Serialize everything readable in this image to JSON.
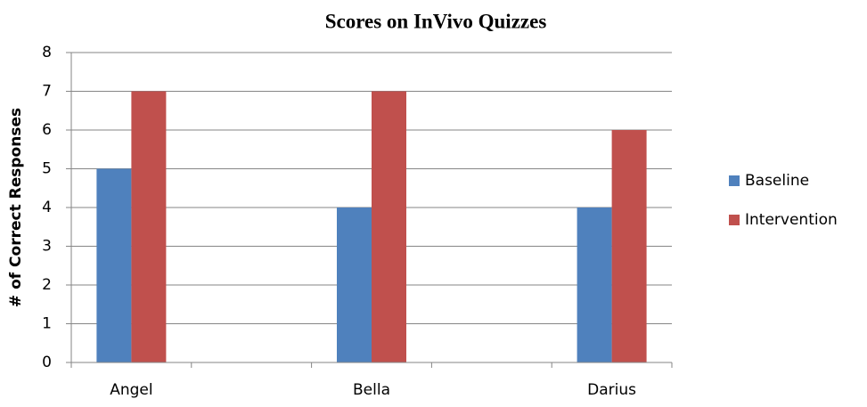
{
  "chart_data": {
    "type": "bar",
    "title": "Scores on InVivo Quizzes",
    "y_label": "# of Correct Responses",
    "categories": [
      "Angel",
      null,
      "Bella",
      null,
      "Darius"
    ],
    "series": [
      {
        "name": "Baseline",
        "color": "#4f81bd",
        "values": [
          5,
          null,
          4,
          null,
          4
        ]
      },
      {
        "name": "Intervention",
        "color": "#c0504d",
        "values": [
          7,
          null,
          7,
          null,
          6
        ]
      }
    ],
    "ylim": [
      0,
      8
    ],
    "yticks": [
      0,
      1,
      2,
      3,
      4,
      5,
      6,
      7,
      8
    ],
    "grid": true,
    "legend": "right"
  }
}
